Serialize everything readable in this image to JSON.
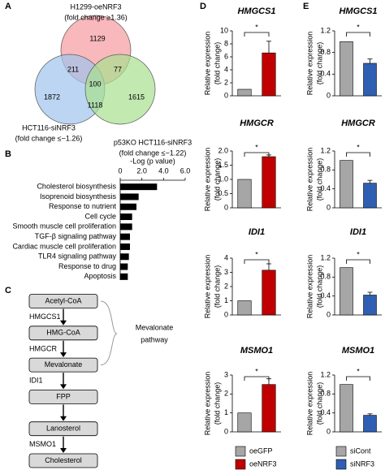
{
  "panels": [
    "A",
    "B",
    "C",
    "D",
    "E"
  ],
  "venn": {
    "sets": [
      {
        "label": "H1299-oeNRF3",
        "sublabel": "(fold change ≥1.36)",
        "color": "#d42a30",
        "fill": "#f59aa0"
      },
      {
        "label": "HCT116-siNRF3",
        "sublabel": "(fold change ≤−1.26)",
        "color": "#3d6fb4",
        "fill": "#9fc3ec"
      },
      {
        "label": "p53KO HCT116-siNRF3",
        "sublabel": "(fold change ≤−1.22)",
        "color": "#3f9c35",
        "fill": "#a8e08f"
      }
    ],
    "regions": {
      "a_only": 1129,
      "b_only": 1872,
      "c_only": 1615,
      "ab": 211,
      "ac": 77,
      "bc": 1118,
      "abc": 100
    }
  },
  "pathway": {
    "nodes": [
      "Acetyl-CoA",
      "HMG-CoA",
      "Mevalonate",
      "FPP",
      "Lanosterol",
      "Cholesterol"
    ],
    "steps": [
      "HMGCS1",
      "HMGCR",
      "IDI1",
      null,
      "MSMO1"
    ],
    "bracket_label": [
      "Mevalonate",
      "pathway"
    ]
  },
  "legends": [
    [
      {
        "name": "oeGFP",
        "color": "#a6a6a6"
      },
      {
        "name": "oeNRF3",
        "color": "#c00000"
      }
    ],
    [
      {
        "name": "siCont",
        "color": "#a6a6a6"
      },
      {
        "name": "siNRF3",
        "color": "#2f5fb3"
      }
    ]
  ],
  "chart_data": [
    {
      "type": "hbar",
      "xlabel": "-Log (p value)",
      "categories": [
        "Cholesterol biosynthesis",
        "Isoprenoid biosynthesis",
        "Response to nutrient",
        "Cell cycle",
        "Smooth muscle cell proliferation",
        "TGF-β signaling pathway",
        "Cardiac muscle cell proliferation",
        "TLR4 signaling pathway",
        "Response to drug",
        "Apoptosis"
      ],
      "values": [
        3.4,
        1.7,
        1.5,
        1.1,
        1.1,
        0.9,
        0.9,
        0.8,
        0.7,
        0.7
      ],
      "color": "#000000",
      "xlim": [
        0,
        6
      ],
      "xticks": [
        0,
        {
          "value": 2,
          "label": "2.0"
        },
        {
          "value": 4,
          "label": "4.0"
        },
        {
          "value": 6,
          "label": "6.0"
        }
      ]
    },
    {
      "type": "bar",
      "title": "HMGCS1",
      "ylabel": [
        "Relative expression",
        "(fold change)"
      ],
      "categories": [
        null,
        null
      ],
      "values": [
        1,
        6.6
      ],
      "errors": [
        null,
        1.8
      ],
      "colors": [
        "#a6a6a6",
        "#c00000"
      ],
      "annotation": "*",
      "ylim": [
        0,
        10
      ],
      "yticks": [
        0,
        2,
        4,
        6,
        8,
        10
      ]
    },
    {
      "type": "bar",
      "title": "HMGCR",
      "ylabel": [
        "Relative expression",
        "(fold change)"
      ],
      "categories": [
        null,
        null
      ],
      "values": [
        1,
        1.8
      ],
      "errors": [
        null,
        0.06
      ],
      "colors": [
        "#a6a6a6",
        "#c00000"
      ],
      "annotation": "*",
      "ylim": [
        0,
        2
      ],
      "yticks": [
        0,
        0.5,
        {
          "value": 1,
          "label": "1.0"
        },
        1.5,
        {
          "value": 2,
          "label": "2.0"
        }
      ]
    },
    {
      "type": "bar",
      "title": "IDI1",
      "ylabel": [
        "Relative expression",
        "(fold change)"
      ],
      "categories": [
        null,
        null
      ],
      "values": [
        1,
        3.15
      ],
      "errors": [
        null,
        0.45
      ],
      "colors": [
        "#a6a6a6",
        "#c00000"
      ],
      "annotation": "*",
      "ylim": [
        0,
        4
      ],
      "yticks": [
        0,
        1,
        2,
        3,
        4
      ]
    },
    {
      "type": "bar",
      "title": "MSMO1",
      "ylabel": [
        "Relative expression",
        "(fold change)"
      ],
      "categories": [
        null,
        null
      ],
      "values": [
        1,
        2.5
      ],
      "errors": [
        null,
        0.3
      ],
      "colors": [
        "#a6a6a6",
        "#c00000"
      ],
      "annotation": "*",
      "ylim": [
        0,
        3
      ],
      "yticks": [
        0,
        1,
        2,
        3
      ]
    },
    {
      "type": "bar",
      "title": "HMGCS1",
      "ylabel": [
        "Relative expression",
        "(fold change)"
      ],
      "categories": [
        null,
        null
      ],
      "values": [
        1,
        0.6
      ],
      "errors": [
        null,
        0.08
      ],
      "colors": [
        "#a6a6a6",
        "#2f5fb3"
      ],
      "annotation": "*",
      "ylim": [
        0,
        1.2
      ],
      "yticks": [
        0,
        0.4,
        0.8,
        1.2
      ]
    },
    {
      "type": "bar",
      "title": "HMGCR",
      "ylabel": [
        "Relative expression",
        "(fold change)"
      ],
      "categories": [
        null,
        null
      ],
      "values": [
        1,
        0.52
      ],
      "errors": [
        null,
        0.06
      ],
      "colors": [
        "#a6a6a6",
        "#2f5fb3"
      ],
      "annotation": "*",
      "ylim": [
        0,
        1.2
      ],
      "yticks": [
        0,
        0.4,
        0.8,
        1.2
      ]
    },
    {
      "type": "bar",
      "title": "IDI1",
      "ylabel": [
        "Relative expression",
        "(fold change)"
      ],
      "categories": [
        null,
        null
      ],
      "values": [
        1,
        0.42
      ],
      "errors": [
        null,
        0.06
      ],
      "colors": [
        "#a6a6a6",
        "#2f5fb3"
      ],
      "annotation": "*",
      "ylim": [
        0,
        1.2
      ],
      "yticks": [
        0,
        0.4,
        0.8,
        1.2
      ]
    },
    {
      "type": "bar",
      "title": "MSMO1",
      "ylabel": [
        "Relative expression",
        "(fold change)"
      ],
      "categories": [
        null,
        null
      ],
      "values": [
        1,
        0.35
      ],
      "errors": [
        null,
        0.03
      ],
      "colors": [
        "#a6a6a6",
        "#2f5fb3"
      ],
      "annotation": "*",
      "ylim": [
        0,
        1.2
      ],
      "yticks": [
        0,
        0.4,
        0.8,
        1.2
      ]
    }
  ]
}
